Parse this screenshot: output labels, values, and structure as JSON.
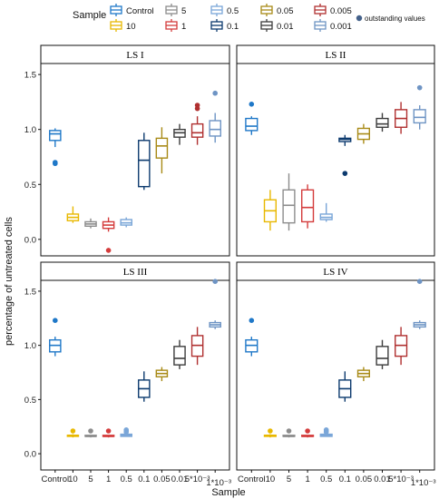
{
  "chart_data": {
    "type": "boxplot",
    "ylabel": "percentage of untreated cells",
    "xlabel": "Sample",
    "ylim": [
      -0.15,
      1.6
    ],
    "yticks": [
      0.0,
      0.5,
      1.0,
      1.5
    ],
    "categories": [
      "Control",
      "10",
      "5",
      "1",
      "0.5",
      "0.1",
      "0.05",
      "0.01",
      "5*10⁻³",
      "1*10⁻³"
    ],
    "legend": {
      "title": "Sample",
      "items": [
        {
          "label": "Control",
          "color": "#1f78c8"
        },
        {
          "label": "10",
          "color": "#e8b800"
        },
        {
          "label": "5",
          "color": "#8c8c8c"
        },
        {
          "label": "1",
          "color": "#d43c3c"
        },
        {
          "label": "0.5",
          "color": "#7aa6d8"
        },
        {
          "label": "0.1",
          "color": "#0c3a6e"
        },
        {
          "label": "0.05",
          "color": "#a88a16"
        },
        {
          "label": "0.01",
          "color": "#3c3c3c"
        },
        {
          "label": "0.005",
          "color": "#b03030"
        },
        {
          "label": "0.001",
          "color": "#6e94c4"
        }
      ],
      "outlier_label": "outstanding values",
      "outlier_color": "#44618a"
    },
    "panels": [
      {
        "title": "LS I",
        "boxes": [
          {
            "min": 0.84,
            "q1": 0.9,
            "median": 0.96,
            "q3": 0.99,
            "max": 1.01,
            "outliers": [
              0.7,
              0.69
            ]
          },
          {
            "min": 0.15,
            "q1": 0.17,
            "median": 0.2,
            "q3": 0.23,
            "max": 0.3,
            "outliers": []
          },
          {
            "min": 0.1,
            "q1": 0.12,
            "median": 0.14,
            "q3": 0.16,
            "max": 0.19,
            "outliers": []
          },
          {
            "min": 0.07,
            "q1": 0.1,
            "median": 0.13,
            "q3": 0.16,
            "max": 0.2,
            "outliers": [
              -0.1
            ]
          },
          {
            "min": 0.11,
            "q1": 0.13,
            "median": 0.15,
            "q3": 0.18,
            "max": 0.2,
            "outliers": []
          },
          {
            "min": 0.45,
            "q1": 0.48,
            "median": 0.72,
            "q3": 0.9,
            "max": 0.97,
            "outliers": []
          },
          {
            "min": 0.6,
            "q1": 0.74,
            "median": 0.85,
            "q3": 0.92,
            "max": 1.02,
            "outliers": []
          },
          {
            "min": 0.86,
            "q1": 0.93,
            "median": 0.97,
            "q3": 1.0,
            "max": 1.05,
            "outliers": []
          },
          {
            "min": 0.86,
            "q1": 0.93,
            "median": 0.97,
            "q3": 1.05,
            "max": 1.12,
            "outliers": [
              1.22,
              1.19
            ]
          },
          {
            "min": 0.88,
            "q1": 0.94,
            "median": 1.0,
            "q3": 1.08,
            "max": 1.15,
            "outliers": [
              1.33
            ]
          }
        ]
      },
      {
        "title": "LS II",
        "boxes": [
          {
            "min": 0.95,
            "q1": 0.99,
            "median": 1.03,
            "q3": 1.1,
            "max": 1.12,
            "outliers": [
              1.23
            ]
          },
          {
            "min": 0.08,
            "q1": 0.16,
            "median": 0.26,
            "q3": 0.36,
            "max": 0.45,
            "outliers": []
          },
          {
            "min": 0.08,
            "q1": 0.15,
            "median": 0.31,
            "q3": 0.45,
            "max": 0.6,
            "outliers": []
          },
          {
            "min": 0.1,
            "q1": 0.16,
            "median": 0.29,
            "q3": 0.45,
            "max": 0.5,
            "outliers": []
          },
          {
            "min": 0.16,
            "q1": 0.18,
            "median": 0.2,
            "q3": 0.23,
            "max": 0.33,
            "outliers": []
          },
          {
            "min": 0.85,
            "q1": 0.89,
            "median": 0.91,
            "q3": 0.92,
            "max": 0.95,
            "outliers": [
              0.6
            ]
          },
          {
            "min": 0.87,
            "q1": 0.91,
            "median": 0.96,
            "q3": 1.01,
            "max": 1.05,
            "outliers": []
          },
          {
            "min": 0.98,
            "q1": 1.02,
            "median": 1.05,
            "q3": 1.1,
            "max": 1.15,
            "outliers": []
          },
          {
            "min": 0.96,
            "q1": 1.02,
            "median": 1.1,
            "q3": 1.18,
            "max": 1.25,
            "outliers": []
          },
          {
            "min": 1.0,
            "q1": 1.06,
            "median": 1.11,
            "q3": 1.18,
            "max": 1.22,
            "outliers": [
              1.38
            ]
          }
        ]
      },
      {
        "title": "LS III",
        "boxes": [
          {
            "min": 0.9,
            "q1": 0.94,
            "median": 1.0,
            "q3": 1.05,
            "max": 1.08,
            "outliers": [
              1.23
            ]
          },
          {
            "min": 0.15,
            "q1": 0.16,
            "median": 0.17,
            "q3": 0.17,
            "max": 0.18,
            "outliers": [
              0.21
            ]
          },
          {
            "min": 0.15,
            "q1": 0.16,
            "median": 0.16,
            "q3": 0.17,
            "max": 0.17,
            "outliers": [
              0.21
            ]
          },
          {
            "min": 0.15,
            "q1": 0.16,
            "median": 0.16,
            "q3": 0.17,
            "max": 0.17,
            "outliers": [
              0.21
            ]
          },
          {
            "min": 0.16,
            "q1": 0.16,
            "median": 0.17,
            "q3": 0.18,
            "max": 0.19,
            "outliers": [
              0.21,
              0.22,
              0.2
            ]
          },
          {
            "min": 0.48,
            "q1": 0.52,
            "median": 0.6,
            "q3": 0.68,
            "max": 0.76,
            "outliers": []
          },
          {
            "min": 0.67,
            "q1": 0.71,
            "median": 0.74,
            "q3": 0.77,
            "max": 0.8,
            "outliers": []
          },
          {
            "min": 0.78,
            "q1": 0.82,
            "median": 0.88,
            "q3": 0.99,
            "max": 1.05,
            "outliers": []
          },
          {
            "min": 0.82,
            "q1": 0.9,
            "median": 1.0,
            "q3": 1.09,
            "max": 1.17,
            "outliers": []
          },
          {
            "min": 1.15,
            "q1": 1.17,
            "median": 1.19,
            "q3": 1.21,
            "max": 1.23,
            "outliers": [
              1.59
            ]
          }
        ]
      },
      {
        "title": "LS IV",
        "boxes": [
          {
            "min": 0.9,
            "q1": 0.94,
            "median": 1.0,
            "q3": 1.05,
            "max": 1.08,
            "outliers": [
              1.23
            ]
          },
          {
            "min": 0.15,
            "q1": 0.16,
            "median": 0.17,
            "q3": 0.17,
            "max": 0.18,
            "outliers": [
              0.21
            ]
          },
          {
            "min": 0.15,
            "q1": 0.16,
            "median": 0.16,
            "q3": 0.17,
            "max": 0.17,
            "outliers": [
              0.21
            ]
          },
          {
            "min": 0.15,
            "q1": 0.16,
            "median": 0.16,
            "q3": 0.17,
            "max": 0.17,
            "outliers": [
              0.21
            ]
          },
          {
            "min": 0.16,
            "q1": 0.16,
            "median": 0.17,
            "q3": 0.18,
            "max": 0.19,
            "outliers": [
              0.21,
              0.22,
              0.2
            ]
          },
          {
            "min": 0.48,
            "q1": 0.52,
            "median": 0.6,
            "q3": 0.68,
            "max": 0.76,
            "outliers": []
          },
          {
            "min": 0.67,
            "q1": 0.71,
            "median": 0.74,
            "q3": 0.77,
            "max": 0.8,
            "outliers": []
          },
          {
            "min": 0.78,
            "q1": 0.82,
            "median": 0.88,
            "q3": 0.99,
            "max": 1.05,
            "outliers": []
          },
          {
            "min": 0.82,
            "q1": 0.9,
            "median": 1.0,
            "q3": 1.09,
            "max": 1.17,
            "outliers": []
          },
          {
            "min": 1.15,
            "q1": 1.17,
            "median": 1.19,
            "q3": 1.21,
            "max": 1.23,
            "outliers": [
              1.59
            ]
          }
        ]
      }
    ]
  }
}
